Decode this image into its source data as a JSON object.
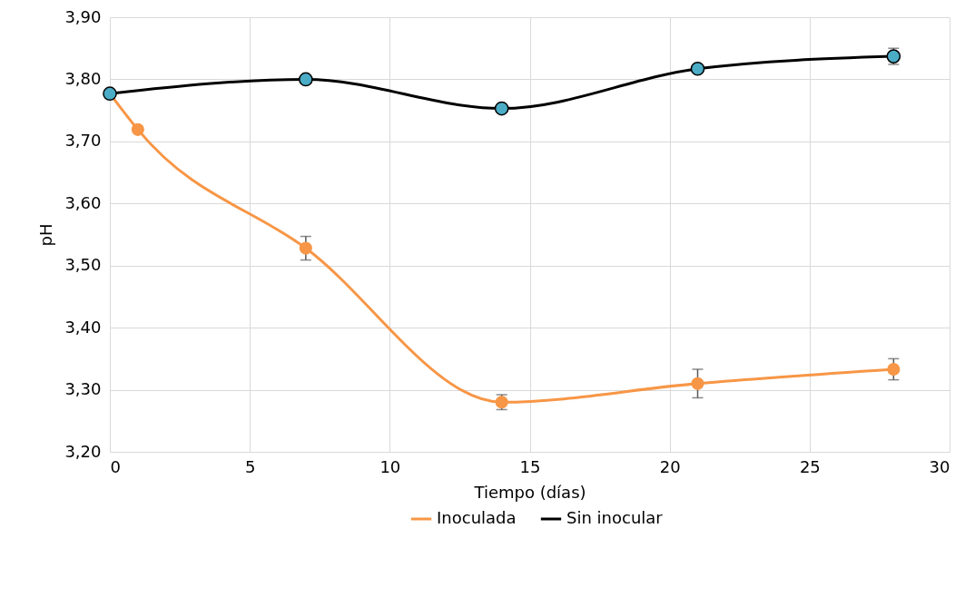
{
  "chart_data": {
    "type": "line",
    "xlabel": "Tiempo (días)",
    "ylabel": "pH",
    "xlim": [
      0,
      30
    ],
    "xticks": [
      0,
      5,
      10,
      15,
      20,
      25,
      30
    ],
    "ylim": [
      3.2,
      3.9
    ],
    "yticks": [
      {
        "value": 3.2,
        "label": "3,20"
      },
      {
        "value": 3.3,
        "label": "3,30"
      },
      {
        "value": 3.4,
        "label": "3,40"
      },
      {
        "value": 3.5,
        "label": "3,50"
      },
      {
        "value": 3.6,
        "label": "3,60"
      },
      {
        "value": 3.7,
        "label": "3,70"
      },
      {
        "value": 3.8,
        "label": "3,80"
      },
      {
        "value": 3.9,
        "label": "3,90"
      }
    ],
    "grid": true,
    "legend": "bottom",
    "marker": "circle",
    "series": [
      {
        "name": "Inoculada",
        "color": "#f79646",
        "x": [
          0,
          1,
          7,
          14,
          21,
          28
        ],
        "values": [
          3.777,
          3.719,
          3.528,
          3.28,
          3.31,
          3.333
        ],
        "errors": [
          null,
          null,
          0.019,
          0.012,
          0.023,
          0.017
        ]
      },
      {
        "name": "Sin inocular",
        "color": "#000000",
        "colors": [
          "#4bacc6",
          "#4bacc6",
          "#4bacc6",
          "#4bacc6",
          "#4bacc6"
        ],
        "x": [
          0,
          7,
          14,
          21,
          28
        ],
        "values": [
          3.777,
          3.8,
          3.753,
          3.817,
          3.837
        ],
        "errors": [
          null,
          null,
          null,
          null,
          0.013
        ]
      }
    ]
  }
}
